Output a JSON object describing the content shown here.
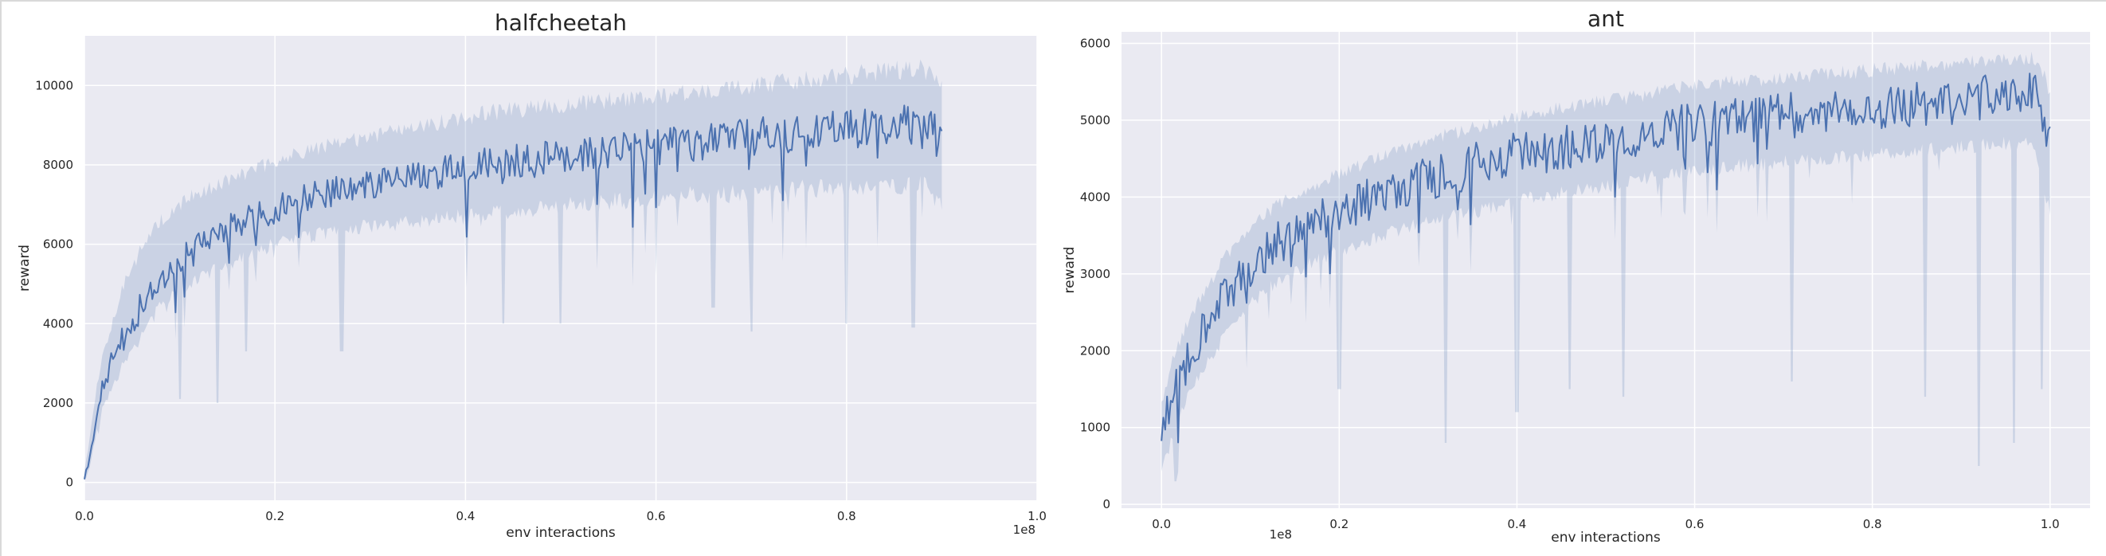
{
  "chart_data": [
    {
      "type": "line",
      "title": "halfcheetah",
      "xlabel": "env interactions",
      "ylabel": "reward",
      "x_offset_label": "1e8",
      "xlim": [
        0.0,
        1.0
      ],
      "ylim": [
        -450,
        11250
      ],
      "x_ticks": [
        0.0,
        0.2,
        0.4,
        0.6,
        0.8,
        1.0
      ],
      "x_tick_labels": [
        "0.0",
        "0.2",
        "0.4",
        "0.6",
        "0.8",
        "1.0"
      ],
      "y_ticks": [
        0,
        2000,
        4000,
        6000,
        8000,
        10000
      ],
      "y_tick_labels": [
        "0",
        "2000",
        "4000",
        "6000",
        "8000",
        "10000"
      ],
      "grid": true,
      "color": "#4c72b0",
      "band_color": "#4c72b0",
      "series": [
        {
          "x": [
            0.0,
            0.005,
            0.01,
            0.015,
            0.02,
            0.025,
            0.03,
            0.035,
            0.04,
            0.05,
            0.06,
            0.07,
            0.08,
            0.09,
            0.1,
            0.12,
            0.14,
            0.16,
            0.18,
            0.2,
            0.22,
            0.24,
            0.26,
            0.28,
            0.3,
            0.32,
            0.34,
            0.36,
            0.38,
            0.4,
            0.42,
            0.44,
            0.46,
            0.48,
            0.5,
            0.52,
            0.54,
            0.56,
            0.58,
            0.6,
            0.62,
            0.64,
            0.66,
            0.68,
            0.7,
            0.72,
            0.74,
            0.76,
            0.78,
            0.8,
            0.82,
            0.84,
            0.86,
            0.88,
            0.9
          ],
          "y": [
            100,
            600,
            1300,
            2000,
            2500,
            2800,
            3100,
            3300,
            3600,
            4000,
            4500,
            4900,
            5200,
            5400,
            5600,
            5900,
            6200,
            6500,
            6700,
            6900,
            7050,
            7200,
            7300,
            7400,
            7500,
            7600,
            7700,
            7800,
            7850,
            7900,
            8000,
            8050,
            8100,
            8150,
            8200,
            8250,
            8300,
            8350,
            8400,
            8450,
            8500,
            8550,
            8600,
            8650,
            8700,
            8750,
            8800,
            8850,
            8900,
            8900,
            8950,
            8950,
            9000,
            9000,
            8600
          ],
          "lower": [
            50,
            300,
            900,
            1500,
            1900,
            2200,
            2500,
            2700,
            3000,
            3300,
            3700,
            4100,
            4400,
            4600,
            4800,
            5100,
            5400,
            5600,
            5800,
            6000,
            6100,
            6200,
            6300,
            6400,
            6450,
            6500,
            6550,
            6600,
            6650,
            6700,
            6750,
            6800,
            6850,
            6900,
            6950,
            7000,
            7050,
            7100,
            7100,
            7150,
            7200,
            7250,
            7250,
            7300,
            7300,
            7350,
            7350,
            7400,
            7400,
            7450,
            7450,
            7500,
            7500,
            7500,
            6900
          ],
          "upper": [
            300,
            1000,
            2000,
            2700,
            3300,
            3700,
            4100,
            4500,
            4900,
            5400,
            5900,
            6300,
            6600,
            6800,
            7000,
            7300,
            7500,
            7700,
            7900,
            8100,
            8250,
            8400,
            8500,
            8600,
            8700,
            8800,
            8900,
            9000,
            9100,
            9200,
            9300,
            9350,
            9400,
            9450,
            9500,
            9550,
            9600,
            9650,
            9700,
            9750,
            9800,
            9850,
            9900,
            9950,
            10000,
            10050,
            10100,
            10150,
            10200,
            10250,
            10300,
            10350,
            10400,
            10450,
            10000
          ],
          "dips": [
            [
              0.1,
              2100
            ],
            [
              0.14,
              2000
            ],
            [
              0.17,
              3300
            ],
            [
              0.27,
              3300
            ],
            [
              0.44,
              4000
            ],
            [
              0.5,
              4000
            ],
            [
              0.66,
              4400
            ],
            [
              0.7,
              3800
            ],
            [
              0.8,
              4000
            ],
            [
              0.87,
              3900
            ]
          ]
        }
      ]
    },
    {
      "type": "line",
      "title": "ant",
      "xlabel": "env interactions",
      "ylabel": "reward",
      "x_offset_label": "1e8",
      "xlim": [
        -0.045,
        1.045
      ],
      "ylim": [
        -50,
        6150
      ],
      "x_ticks": [
        0.0,
        0.2,
        0.4,
        0.6,
        0.8,
        1.0
      ],
      "x_tick_labels": [
        "0.0",
        "0.2",
        "0.4",
        "0.6",
        "0.8",
        "1.0"
      ],
      "y_ticks": [
        0,
        1000,
        2000,
        3000,
        4000,
        5000,
        6000
      ],
      "y_tick_labels": [
        "0",
        "1000",
        "2000",
        "3000",
        "4000",
        "5000",
        "6000"
      ],
      "grid": true,
      "color": "#4c72b0",
      "band_color": "#4c72b0",
      "series": [
        {
          "x": [
            0.0,
            0.01,
            0.02,
            0.03,
            0.05,
            0.07,
            0.1,
            0.13,
            0.16,
            0.2,
            0.25,
            0.3,
            0.35,
            0.4,
            0.45,
            0.5,
            0.55,
            0.6,
            0.65,
            0.7,
            0.75,
            0.8,
            0.85,
            0.9,
            0.95,
            0.98,
            1.0
          ],
          "y": [
            950,
            1300,
            1600,
            1900,
            2300,
            2700,
            3100,
            3400,
            3600,
            3800,
            4050,
            4250,
            4400,
            4550,
            4650,
            4750,
            4850,
            4950,
            5000,
            5050,
            5100,
            5150,
            5200,
            5250,
            5350,
            5400,
            4600
          ],
          "lower": [
            400,
            800,
            1100,
            1400,
            1800,
            2200,
            2600,
            2900,
            3100,
            3300,
            3500,
            3700,
            3800,
            3950,
            4050,
            4150,
            4250,
            4350,
            4400,
            4450,
            4500,
            4550,
            4600,
            4650,
            4700,
            4700,
            3800
          ],
          "upper": [
            1300,
            1800,
            2100,
            2400,
            2800,
            3200,
            3600,
            3900,
            4100,
            4300,
            4550,
            4750,
            4900,
            5050,
            5150,
            5250,
            5350,
            5450,
            5500,
            5550,
            5600,
            5650,
            5700,
            5750,
            5800,
            5800,
            5400
          ],
          "dips": [
            [
              0.015,
              300
            ],
            [
              0.2,
              1500
            ],
            [
              0.32,
              800
            ],
            [
              0.4,
              1200
            ],
            [
              0.46,
              1500
            ],
            [
              0.52,
              1400
            ],
            [
              0.71,
              1600
            ],
            [
              0.86,
              1400
            ],
            [
              0.92,
              500
            ],
            [
              0.96,
              800
            ],
            [
              0.99,
              1500
            ]
          ]
        }
      ]
    }
  ]
}
